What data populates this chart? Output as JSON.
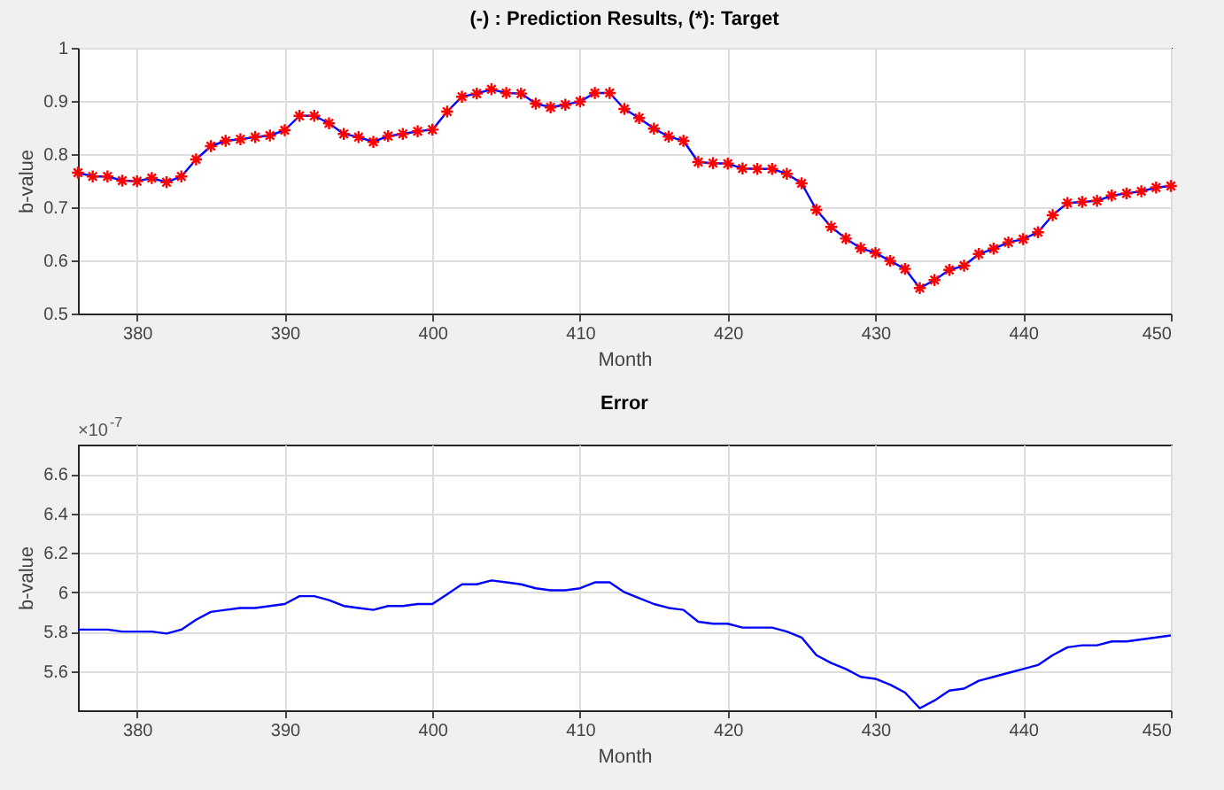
{
  "chart_data": [
    {
      "type": "line",
      "title": "(-) : Prediction Results, (*): Target",
      "xlabel": "Month",
      "ylabel": "b-value",
      "x": [
        376,
        377,
        378,
        379,
        380,
        381,
        382,
        383,
        384,
        385,
        386,
        387,
        388,
        389,
        390,
        391,
        392,
        393,
        394,
        395,
        396,
        397,
        398,
        399,
        400,
        401,
        402,
        403,
        404,
        405,
        406,
        407,
        408,
        409,
        410,
        411,
        412,
        413,
        414,
        415,
        416,
        417,
        418,
        419,
        420,
        421,
        422,
        423,
        424,
        425,
        426,
        427,
        428,
        429,
        430,
        431,
        432,
        433,
        434,
        435,
        436,
        437,
        438,
        439,
        440,
        441,
        442,
        443,
        444,
        445,
        446,
        447,
        448,
        449,
        450
      ],
      "series": [
        {
          "color": "#0000ff",
          "values": [
            0.765,
            0.758,
            0.758,
            0.75,
            0.749,
            0.755,
            0.747,
            0.758,
            0.79,
            0.815,
            0.825,
            0.828,
            0.832,
            0.835,
            0.845,
            0.872,
            0.872,
            0.858,
            0.838,
            0.832,
            0.823,
            0.834,
            0.838,
            0.843,
            0.846,
            0.88,
            0.908,
            0.914,
            0.922,
            0.915,
            0.914,
            0.895,
            0.888,
            0.893,
            0.899,
            0.915,
            0.915,
            0.885,
            0.868,
            0.848,
            0.833,
            0.825,
            0.785,
            0.783,
            0.782,
            0.773,
            0.772,
            0.772,
            0.763,
            0.745,
            0.695,
            0.663,
            0.641,
            0.623,
            0.614,
            0.599,
            0.584,
            0.548,
            0.563,
            0.582,
            0.59,
            0.612,
            0.622,
            0.634,
            0.64,
            0.653,
            0.685,
            0.708,
            0.71,
            0.712,
            0.722,
            0.726,
            0.73,
            0.737,
            0.74
          ]
        },
        {
          "type": "scatter",
          "color": "#ff0000",
          "marker": "cross",
          "values": [
            0.765,
            0.758,
            0.758,
            0.75,
            0.749,
            0.755,
            0.747,
            0.758,
            0.79,
            0.815,
            0.825,
            0.828,
            0.832,
            0.835,
            0.845,
            0.872,
            0.872,
            0.858,
            0.838,
            0.832,
            0.823,
            0.834,
            0.838,
            0.843,
            0.846,
            0.88,
            0.908,
            0.914,
            0.922,
            0.915,
            0.914,
            0.895,
            0.888,
            0.893,
            0.899,
            0.915,
            0.915,
            0.885,
            0.868,
            0.848,
            0.833,
            0.825,
            0.785,
            0.783,
            0.782,
            0.773,
            0.772,
            0.772,
            0.763,
            0.745,
            0.695,
            0.663,
            0.641,
            0.623,
            0.614,
            0.599,
            0.584,
            0.548,
            0.563,
            0.582,
            0.59,
            0.612,
            0.622,
            0.634,
            0.64,
            0.653,
            0.685,
            0.708,
            0.71,
            0.712,
            0.722,
            0.726,
            0.73,
            0.737,
            0.74
          ]
        }
      ],
      "xlim": [
        376,
        450
      ],
      "xticks": [
        380,
        390,
        400,
        410,
        420,
        430,
        440,
        450
      ],
      "ylim": [
        0.5,
        1
      ],
      "yticks": [
        0.5,
        0.6,
        0.7,
        0.8,
        0.9,
        1
      ],
      "grid": true
    },
    {
      "type": "line",
      "title": "Error",
      "xlabel": "Month",
      "ylabel": "b-value",
      "annotations": [
        "×10$^{-7}$"
      ],
      "x": [
        376,
        377,
        378,
        379,
        380,
        381,
        382,
        383,
        384,
        385,
        386,
        387,
        388,
        389,
        390,
        391,
        392,
        393,
        394,
        395,
        396,
        397,
        398,
        399,
        400,
        401,
        402,
        403,
        404,
        405,
        406,
        407,
        408,
        409,
        410,
        411,
        412,
        413,
        414,
        415,
        416,
        417,
        418,
        419,
        420,
        421,
        422,
        423,
        424,
        425,
        426,
        427,
        428,
        429,
        430,
        431,
        432,
        433,
        434,
        435,
        436,
        437,
        438,
        439,
        440,
        441,
        442,
        443,
        444,
        445,
        446,
        447,
        448,
        449,
        450
      ],
      "series": [
        {
          "color": "#0000ff",
          "values": [
            5.81,
            5.81,
            5.81,
            5.8,
            5.8,
            5.8,
            5.79,
            5.81,
            5.86,
            5.9,
            5.91,
            5.92,
            5.92,
            5.93,
            5.94,
            5.98,
            5.98,
            5.96,
            5.93,
            5.92,
            5.91,
            5.93,
            5.93,
            5.94,
            5.94,
            5.99,
            6.04,
            6.04,
            6.06,
            6.05,
            6.04,
            6.02,
            6.01,
            6.01,
            6.02,
            6.05,
            6.05,
            6.0,
            5.97,
            5.94,
            5.92,
            5.91,
            5.85,
            5.84,
            5.84,
            5.82,
            5.82,
            5.82,
            5.8,
            5.77,
            5.68,
            5.64,
            5.61,
            5.57,
            5.56,
            5.53,
            5.49,
            5.41,
            5.45,
            5.5,
            5.51,
            5.55,
            5.57,
            5.59,
            5.61,
            5.63,
            5.68,
            5.72,
            5.73,
            5.73,
            5.75,
            5.75,
            5.76,
            5.77,
            5.78
          ]
        }
      ],
      "xlim": [
        376,
        450
      ],
      "xticks": [
        380,
        390,
        400,
        410,
        420,
        430,
        440,
        450
      ],
      "ylim": [
        5.4,
        6.75
      ],
      "yticks": [
        5.6,
        5.8,
        6,
        6.2,
        6.4,
        6.6
      ],
      "grid": true
    }
  ]
}
